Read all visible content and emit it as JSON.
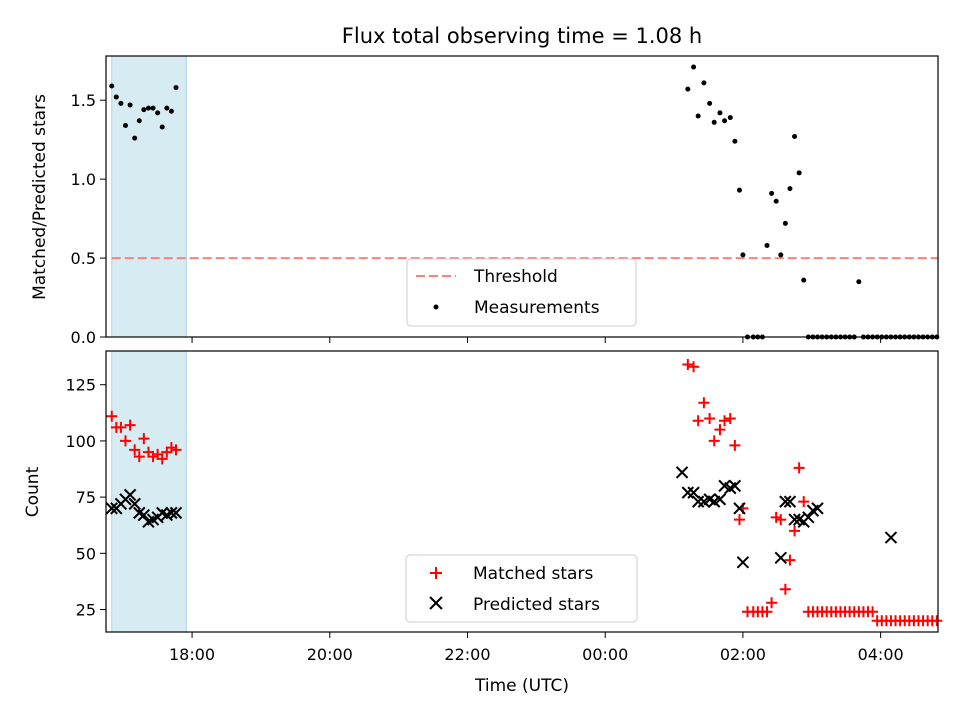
{
  "figure": {
    "title": "Flux total observing time = 1.08 h",
    "xlabel": "Time (UTC)"
  },
  "chart_data": [
    {
      "type": "scatter",
      "panel": "top",
      "ylabel": "Matched/Predicted stars",
      "xlim": [
        "16:45",
        "04:50"
      ],
      "ylim": [
        0,
        1.78
      ],
      "yticks": [
        "0.0",
        "0.5",
        "1.0",
        "1.5"
      ],
      "xticks": [
        "18:00",
        "20:00",
        "22:00",
        "00:00",
        "02:00",
        "04:00"
      ],
      "shaded_interval": [
        "16:50",
        "17:55"
      ],
      "shaded_color": "#add8e6",
      "threshold": {
        "name": "Threshold",
        "value": 0.5,
        "from": "16:50",
        "to": "04:50",
        "color": "#ff7f7f"
      },
      "series": [
        {
          "name": "Measurements",
          "color": "#000000",
          "x": [
            "16:50",
            "16:54",
            "16:58",
            "17:02",
            "17:06",
            "17:10",
            "17:14",
            "17:18",
            "17:22",
            "17:26",
            "17:30",
            "17:34",
            "17:38",
            "17:42",
            "17:46",
            "01:12",
            "01:17",
            "01:21",
            "01:26",
            "01:31",
            "01:35",
            "01:40",
            "01:44",
            "01:49",
            "01:53",
            "01:57",
            "02:00",
            "02:04",
            "02:09",
            "02:13",
            "02:17",
            "02:21",
            "02:25",
            "02:29",
            "02:33",
            "02:37",
            "02:41",
            "02:45",
            "02:49",
            "02:53",
            "02:57",
            "03:01",
            "03:05",
            "03:09",
            "03:13",
            "03:17",
            "03:21",
            "03:25",
            "03:29",
            "03:33",
            "03:37",
            "03:41",
            "03:45",
            "03:49",
            "03:53",
            "03:57",
            "04:01",
            "04:05",
            "04:09",
            "04:13",
            "04:17",
            "04:21",
            "04:25",
            "04:29",
            "04:33",
            "04:37",
            "04:41",
            "04:45",
            "04:49"
          ],
          "y": [
            1.59,
            1.52,
            1.48,
            1.34,
            1.47,
            1.26,
            1.37,
            1.44,
            1.45,
            1.45,
            1.42,
            1.33,
            1.45,
            1.43,
            1.58,
            1.57,
            1.71,
            1.4,
            1.61,
            1.48,
            1.36,
            1.42,
            1.37,
            1.39,
            1.24,
            0.93,
            0.52,
            0.0,
            0.0,
            0.0,
            0.0,
            0.58,
            0.91,
            0.86,
            0.52,
            0.72,
            0.94,
            1.27,
            1.04,
            0.36,
            0.0,
            0.0,
            0.0,
            0.0,
            0.0,
            0.0,
            0.0,
            0.0,
            0.0,
            0.0,
            0.0,
            0.35,
            0.0,
            0.0,
            0.0,
            0.0,
            0.0,
            0.0,
            0.0,
            0.0,
            0.0,
            0.0,
            0.0,
            0.0,
            0.0,
            0.0,
            0.0,
            0.0,
            0.0
          ]
        }
      ]
    },
    {
      "type": "scatter",
      "panel": "bottom",
      "ylabel": "Count",
      "xlim": [
        "16:45",
        "04:50"
      ],
      "ylim": [
        15,
        140
      ],
      "yticks": [
        "25",
        "50",
        "75",
        "100",
        "125"
      ],
      "xticks": [
        "18:00",
        "20:00",
        "22:00",
        "00:00",
        "02:00",
        "04:00"
      ],
      "shaded_interval": [
        "16:50",
        "17:55"
      ],
      "series": [
        {
          "name": "Matched stars",
          "marker": "+",
          "color": "#ff0000",
          "x": [
            "16:50",
            "16:54",
            "16:58",
            "17:02",
            "17:06",
            "17:10",
            "17:14",
            "17:18",
            "17:22",
            "17:26",
            "17:30",
            "17:34",
            "17:38",
            "17:42",
            "17:46",
            "01:12",
            "01:17",
            "01:21",
            "01:26",
            "01:31",
            "01:35",
            "01:40",
            "01:44",
            "01:49",
            "01:53",
            "01:57",
            "02:00",
            "02:04",
            "02:09",
            "02:13",
            "02:17",
            "02:21",
            "02:25",
            "02:29",
            "02:33",
            "02:37",
            "02:41",
            "02:45",
            "02:49",
            "02:53",
            "02:57",
            "03:01",
            "03:05",
            "03:09",
            "03:13",
            "03:17",
            "03:21",
            "03:25",
            "03:29",
            "03:33",
            "03:37",
            "03:41",
            "03:45",
            "03:49",
            "03:53",
            "03:57",
            "04:01",
            "04:05",
            "04:09",
            "04:13",
            "04:17",
            "04:21",
            "04:25",
            "04:29",
            "04:33",
            "04:37",
            "04:41",
            "04:45",
            "04:49"
          ],
          "y": [
            111,
            106,
            106,
            100,
            107,
            96,
            93,
            101,
            95,
            93,
            94,
            92,
            95,
            97,
            96,
            134,
            133,
            109,
            117,
            110,
            100,
            105,
            109,
            110,
            98,
            65,
            70,
            24,
            24,
            24,
            24,
            24,
            28,
            66,
            65,
            34,
            47,
            60,
            88,
            73,
            24,
            24,
            24,
            24,
            24,
            24,
            24,
            24,
            24,
            24,
            24,
            24,
            24,
            24,
            24,
            20,
            20,
            20,
            20,
            20,
            20,
            20,
            20,
            20,
            20,
            20,
            20,
            20,
            20
          ]
        },
        {
          "name": "Predicted stars",
          "marker": "x",
          "color": "#000000",
          "x": [
            "16:50",
            "16:54",
            "16:58",
            "17:02",
            "17:06",
            "17:10",
            "17:14",
            "17:18",
            "17:22",
            "17:26",
            "17:30",
            "17:34",
            "17:38",
            "17:42",
            "17:46",
            "01:07",
            "01:12",
            "01:17",
            "01:21",
            "01:26",
            "01:31",
            "01:35",
            "01:40",
            "01:44",
            "01:49",
            "01:53",
            "01:57",
            "02:00",
            "02:33",
            "02:37",
            "02:41",
            "02:45",
            "02:49",
            "02:53",
            "02:57",
            "03:01",
            "03:05",
            "04:09"
          ],
          "y": [
            70,
            70,
            72,
            74,
            76,
            72,
            68,
            67,
            64,
            65,
            66,
            68,
            67,
            68,
            68,
            86,
            77,
            77,
            73,
            73,
            74,
            73,
            74,
            80,
            79,
            80,
            70,
            46,
            48,
            73,
            73,
            65,
            65,
            64,
            66,
            69,
            70,
            57
          ]
        }
      ]
    }
  ]
}
